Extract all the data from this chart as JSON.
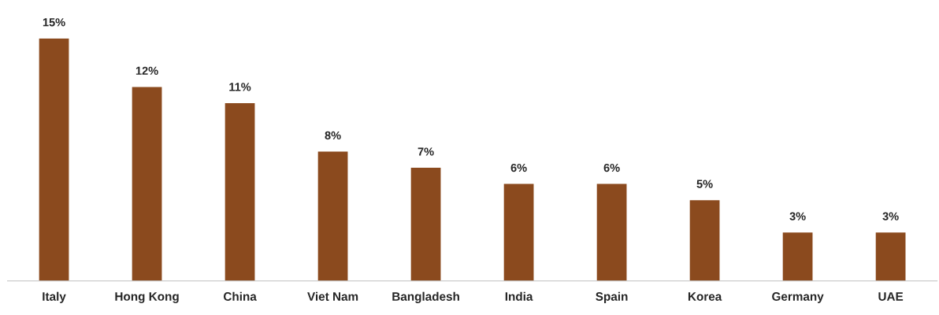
{
  "chart_data": {
    "type": "bar",
    "categories": [
      "Italy",
      "Hong Kong",
      "China",
      "Viet Nam",
      "Bangladesh",
      "India",
      "Spain",
      "Korea",
      "Germany",
      "UAE"
    ],
    "values": [
      15,
      12,
      11,
      8,
      7,
      6,
      6,
      5,
      3,
      3
    ],
    "value_labels": [
      "15%",
      "12%",
      "11%",
      "8%",
      "7%",
      "6%",
      "6%",
      "5%",
      "3%",
      "3%"
    ],
    "color": "#8b4a1e",
    "grid": false,
    "legend": false
  }
}
